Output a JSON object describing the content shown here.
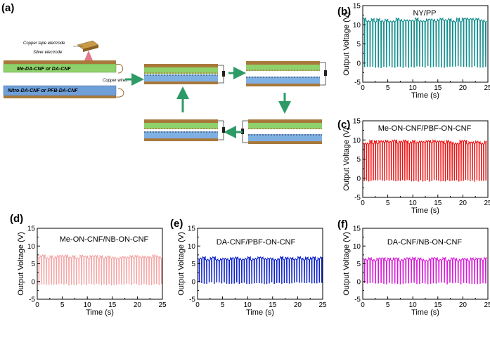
{
  "panel_a": {
    "label": "(a)",
    "texts": {
      "copper_tape": "Copper tape electrode",
      "silver": "Silver electrode",
      "top_layer": "Me-DA-CNF or DA-CNF",
      "bottom_layer": "Nitro-DA-CNF or PFB-DA-CNF",
      "copper_wires": "Copper wires"
    },
    "colors": {
      "green_layer": "#8fd16a",
      "blue_layer": "#6f9fd8",
      "copper": "#9a6a2c",
      "arrow": "#2e9b66",
      "silver_marker": "#e07a8a"
    }
  },
  "chart_data": [
    {
      "id": "b",
      "label": "(b)",
      "type": "line",
      "title": "NY/PP",
      "color": "#0f8c8c",
      "xlabel": "Time (s)",
      "ylabel": "Output Voltage (V)",
      "xlim": [
        0,
        25
      ],
      "ylim": [
        -5,
        15
      ],
      "xticks": [
        0,
        5,
        10,
        15,
        20,
        25
      ],
      "yticks": [
        -5,
        0,
        5,
        10,
        15
      ],
      "series": [
        {
          "name": "NY/PP",
          "peak": 11.8,
          "trough": -1.2,
          "period": 0.55
        }
      ]
    },
    {
      "id": "c",
      "label": "(c)",
      "type": "line",
      "title": "Me-ON-CNF/PBF-ON-CNF",
      "color": "#ee1111",
      "xlabel": "Time (s)",
      "ylabel": "Output Voltage (V)",
      "xlim": [
        0,
        25
      ],
      "ylim": [
        -5,
        15
      ],
      "xticks": [
        0,
        5,
        10,
        15,
        20,
        25
      ],
      "yticks": [
        -5,
        0,
        5,
        10,
        15
      ],
      "series": [
        {
          "name": "Me-ON-CNF/PBF-ON-CNF",
          "peak": 10.0,
          "trough": -0.8,
          "period": 0.45
        }
      ]
    },
    {
      "id": "d",
      "label": "(d)",
      "type": "line",
      "title": "Me-ON-CNF/NB-ON-CNF",
      "color": "#f4a5a5",
      "xlabel": "Time (s)",
      "ylabel": "Output Voltage (V)",
      "xlim": [
        0,
        25
      ],
      "ylim": [
        -5,
        15
      ],
      "xticks": [
        0,
        5,
        10,
        15,
        20,
        25
      ],
      "yticks": [
        -5,
        0,
        5,
        10,
        15
      ],
      "series": [
        {
          "name": "Me-ON-CNF/NB-ON-CNF",
          "peak": 7.5,
          "trough": -1.0,
          "period": 0.5
        }
      ]
    },
    {
      "id": "e",
      "label": "(e)",
      "type": "line",
      "title": "DA-CNF/PBF-ON-CNF",
      "color": "#0b1fc8",
      "xlabel": "Time (s)",
      "ylabel": "Output Voltage (V)",
      "xlim": [
        0,
        25
      ],
      "ylim": [
        -5,
        15
      ],
      "xticks": [
        0,
        5,
        10,
        15,
        20,
        25
      ],
      "yticks": [
        -5,
        0,
        5,
        10,
        15
      ],
      "series": [
        {
          "name": "DA-CNF/PBF-ON-CNF",
          "peak": 7.0,
          "trough": -0.6,
          "period": 0.5
        }
      ]
    },
    {
      "id": "f",
      "label": "(f)",
      "type": "line",
      "title": "DA-CNF/NB-ON-CNF",
      "color": "#d618d6",
      "xlabel": "Time (s)",
      "ylabel": "Output Voltage (V)",
      "xlim": [
        0,
        25
      ],
      "ylim": [
        -5,
        15
      ],
      "xticks": [
        0,
        5,
        10,
        15,
        20,
        25
      ],
      "yticks": [
        -5,
        0,
        5,
        10,
        15
      ],
      "series": [
        {
          "name": "DA-CNF/NB-ON-CNF",
          "peak": 6.8,
          "trough": -0.7,
          "period": 0.55
        }
      ]
    }
  ]
}
